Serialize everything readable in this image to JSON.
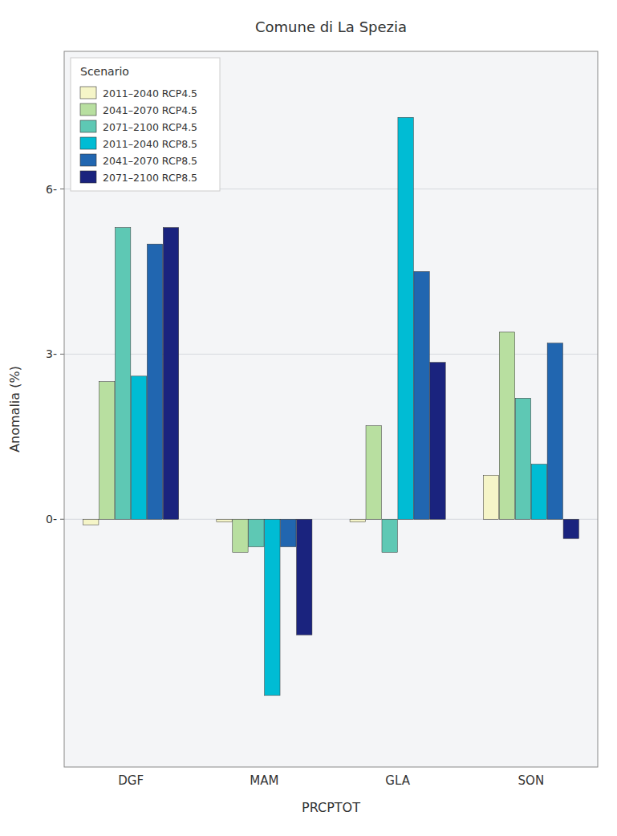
{
  "chart_data": {
    "type": "bar",
    "title": "Comune di La Spezia",
    "x_label": "PRCPTOT",
    "y_label": "Anomalia (%)",
    "legend_title": "Scenario",
    "categories": [
      "DGF",
      "MAM",
      "GLA",
      "SON"
    ],
    "series": [
      {
        "name": "2011–2040 RCP4.5",
        "color": "#f5f5c8",
        "values": [
          -0.1,
          -0.05,
          -0.05,
          0.8
        ]
      },
      {
        "name": "2041–2070 RCP4.5",
        "color": "#b8dfa0",
        "values": [
          2.5,
          -0.6,
          1.7,
          3.4
        ]
      },
      {
        "name": "2071–2100 RCP4.5",
        "color": "#5ec8b4",
        "values": [
          5.3,
          -0.5,
          -0.6,
          2.2
        ]
      },
      {
        "name": "2011–2040 RCP8.5",
        "color": "#00bcd4",
        "values": [
          2.6,
          -3.2,
          7.3,
          1.0
        ]
      },
      {
        "name": "2041–2070 RCP8.5",
        "color": "#2166b0",
        "values": [
          5.0,
          -0.5,
          4.5,
          3.2
        ]
      },
      {
        "name": "2071–2100 RCP8.5",
        "color": "#1a237e",
        "values": [
          5.3,
          -2.1,
          2.85,
          -0.35
        ]
      }
    ],
    "ylim": [
      -4.5,
      8.5
    ],
    "yticks": [
      {
        "value": 0,
        "label": "0-"
      },
      {
        "value": 3,
        "label": "3-"
      },
      {
        "value": 6,
        "label": "6-"
      }
    ],
    "grid": true,
    "legend": "upper left"
  }
}
